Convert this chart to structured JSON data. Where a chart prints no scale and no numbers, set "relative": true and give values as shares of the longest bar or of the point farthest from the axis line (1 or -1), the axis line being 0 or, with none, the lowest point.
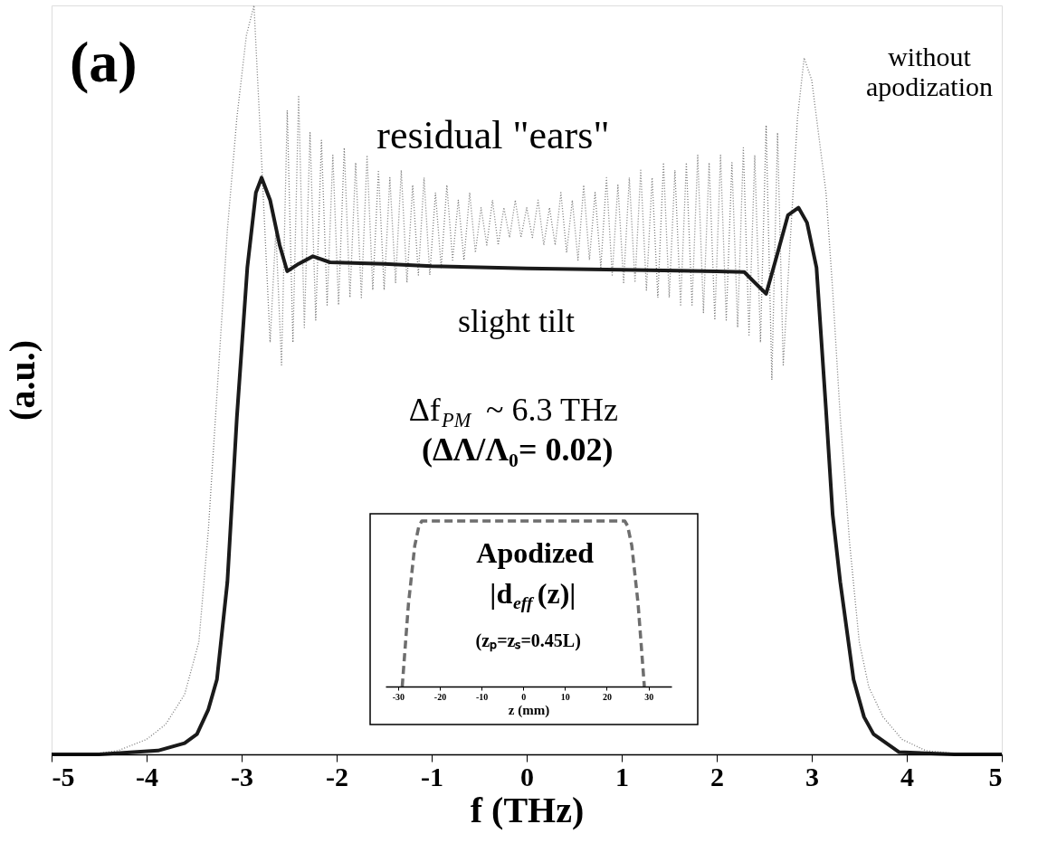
{
  "chart_data": [
    {
      "type": "line",
      "relative": true,
      "xlabel": "f (THz)",
      "ylabel": "(a.u.)",
      "xlim": [
        -5,
        5
      ],
      "xticks": [
        -5,
        -4,
        -3,
        -2,
        -1,
        0,
        1,
        2,
        3,
        4,
        5
      ],
      "marker": "none",
      "series": [
        {
          "color": "#7a7a7a",
          "line_style": "dotted",
          "x": [
            -5,
            -4.6,
            -4.3,
            -4.0,
            -3.8,
            -3.6,
            -3.45,
            -3.35,
            -3.25,
            -3.15,
            -3.05,
            -2.95,
            -2.87,
            -2.8,
            -2.7,
            -2.64,
            -2.58,
            -2.52,
            -2.46,
            -2.4,
            -2.34,
            -2.28,
            -2.22,
            -2.16,
            -2.1,
            -2.04,
            -1.98,
            -1.92,
            -1.86,
            -1.8,
            -1.74,
            -1.68,
            -1.62,
            -1.56,
            -1.5,
            -1.44,
            -1.38,
            -1.32,
            -1.26,
            -1.2,
            -1.14,
            -1.08,
            -1.02,
            -0.96,
            -0.9,
            -0.84,
            -0.78,
            -0.72,
            -0.66,
            -0.6,
            -0.54,
            -0.48,
            -0.42,
            -0.36,
            -0.3,
            -0.24,
            -0.18,
            -0.12,
            -0.06,
            0.0,
            0.06,
            0.12,
            0.18,
            0.24,
            0.3,
            0.36,
            0.42,
            0.48,
            0.54,
            0.6,
            0.66,
            0.72,
            0.78,
            0.84,
            0.9,
            0.96,
            1.02,
            1.08,
            1.14,
            1.2,
            1.26,
            1.32,
            1.38,
            1.44,
            1.5,
            1.56,
            1.62,
            1.68,
            1.74,
            1.8,
            1.86,
            1.92,
            1.98,
            2.04,
            2.1,
            2.16,
            2.22,
            2.28,
            2.34,
            2.4,
            2.46,
            2.52,
            2.58,
            2.64,
            2.7,
            2.78,
            2.85,
            2.92,
            3.0,
            3.08,
            3.15,
            3.22,
            3.3,
            3.4,
            3.5,
            3.6,
            3.75,
            3.95,
            4.2,
            4.6,
            5
          ],
          "values": [
            0,
            0,
            0.005,
            0.02,
            0.04,
            0.08,
            0.15,
            0.3,
            0.5,
            0.7,
            0.85,
            0.96,
            1.0,
            0.82,
            0.55,
            0.7,
            0.52,
            0.86,
            0.55,
            0.88,
            0.57,
            0.83,
            0.58,
            0.82,
            0.6,
            0.8,
            0.6,
            0.81,
            0.61,
            0.79,
            0.61,
            0.8,
            0.62,
            0.78,
            0.62,
            0.77,
            0.63,
            0.78,
            0.63,
            0.76,
            0.64,
            0.77,
            0.64,
            0.75,
            0.65,
            0.76,
            0.66,
            0.74,
            0.66,
            0.75,
            0.67,
            0.73,
            0.68,
            0.74,
            0.68,
            0.73,
            0.69,
            0.74,
            0.69,
            0.73,
            0.69,
            0.74,
            0.68,
            0.73,
            0.68,
            0.75,
            0.67,
            0.74,
            0.66,
            0.76,
            0.66,
            0.75,
            0.65,
            0.77,
            0.64,
            0.76,
            0.63,
            0.77,
            0.63,
            0.78,
            0.62,
            0.77,
            0.61,
            0.79,
            0.61,
            0.78,
            0.6,
            0.79,
            0.6,
            0.8,
            0.59,
            0.79,
            0.58,
            0.8,
            0.58,
            0.79,
            0.57,
            0.81,
            0.56,
            0.8,
            0.55,
            0.84,
            0.5,
            0.83,
            0.52,
            0.7,
            0.85,
            0.93,
            0.9,
            0.82,
            0.75,
            0.62,
            0.45,
            0.28,
            0.15,
            0.09,
            0.05,
            0.02,
            0.005,
            0,
            0
          ]
        },
        {
          "color": "#1a1a1a",
          "line_style": "solid",
          "x": [
            -5,
            -4.5,
            -3.88,
            -3.6,
            -3.47,
            -3.35,
            -3.26,
            -3.15,
            -3.05,
            -2.94,
            -2.85,
            -2.79,
            -2.7,
            -2.6,
            -2.52,
            -2.4,
            -2.25,
            -2.07,
            -1.5,
            -1,
            0,
            1,
            2,
            2.29,
            2.4,
            2.52,
            2.62,
            2.75,
            2.86,
            2.95,
            3.05,
            3.15,
            3.22,
            3.3,
            3.44,
            3.55,
            3.65,
            3.92,
            4.5,
            5
          ],
          "values": [
            0,
            0,
            0.005,
            0.015,
            0.027,
            0.06,
            0.1,
            0.23,
            0.45,
            0.65,
            0.75,
            0.77,
            0.74,
            0.68,
            0.645,
            0.655,
            0.665,
            0.657,
            0.655,
            0.652,
            0.649,
            0.647,
            0.645,
            0.644,
            0.63,
            0.615,
            0.66,
            0.72,
            0.73,
            0.71,
            0.65,
            0.46,
            0.32,
            0.23,
            0.1,
            0.05,
            0.027,
            0.003,
            0,
            0
          ]
        }
      ],
      "annotations": [
        "(a)",
        "residual \"ears\"",
        "without apodization",
        "slight tilt",
        "Δf$_{PM}$ ~ 6.3 THz",
        "(ΔΛ/Λ₀= 0.02)"
      ]
    },
    {
      "type": "line",
      "relative": true,
      "xlabel": "z (mm)",
      "xlim": [
        -33,
        35.5
      ],
      "xticks": [
        -30,
        -20,
        -10,
        0,
        10,
        20,
        30
      ],
      "series": [
        {
          "color": "#6e6e6e",
          "line_style": "dashed",
          "x": [
            -29,
            -27.5,
            -26,
            -25,
            -24.3,
            0,
            24.3,
            25,
            26,
            27.5,
            29
          ],
          "values": [
            0,
            0.5,
            0.85,
            0.97,
            1,
            1,
            1,
            0.97,
            0.85,
            0.5,
            0
          ]
        }
      ],
      "annotations": [
        "Apodized",
        "|d$_{eff}$(z)|",
        "(zₚ=zₛ=0.45L)"
      ]
    }
  ]
}
